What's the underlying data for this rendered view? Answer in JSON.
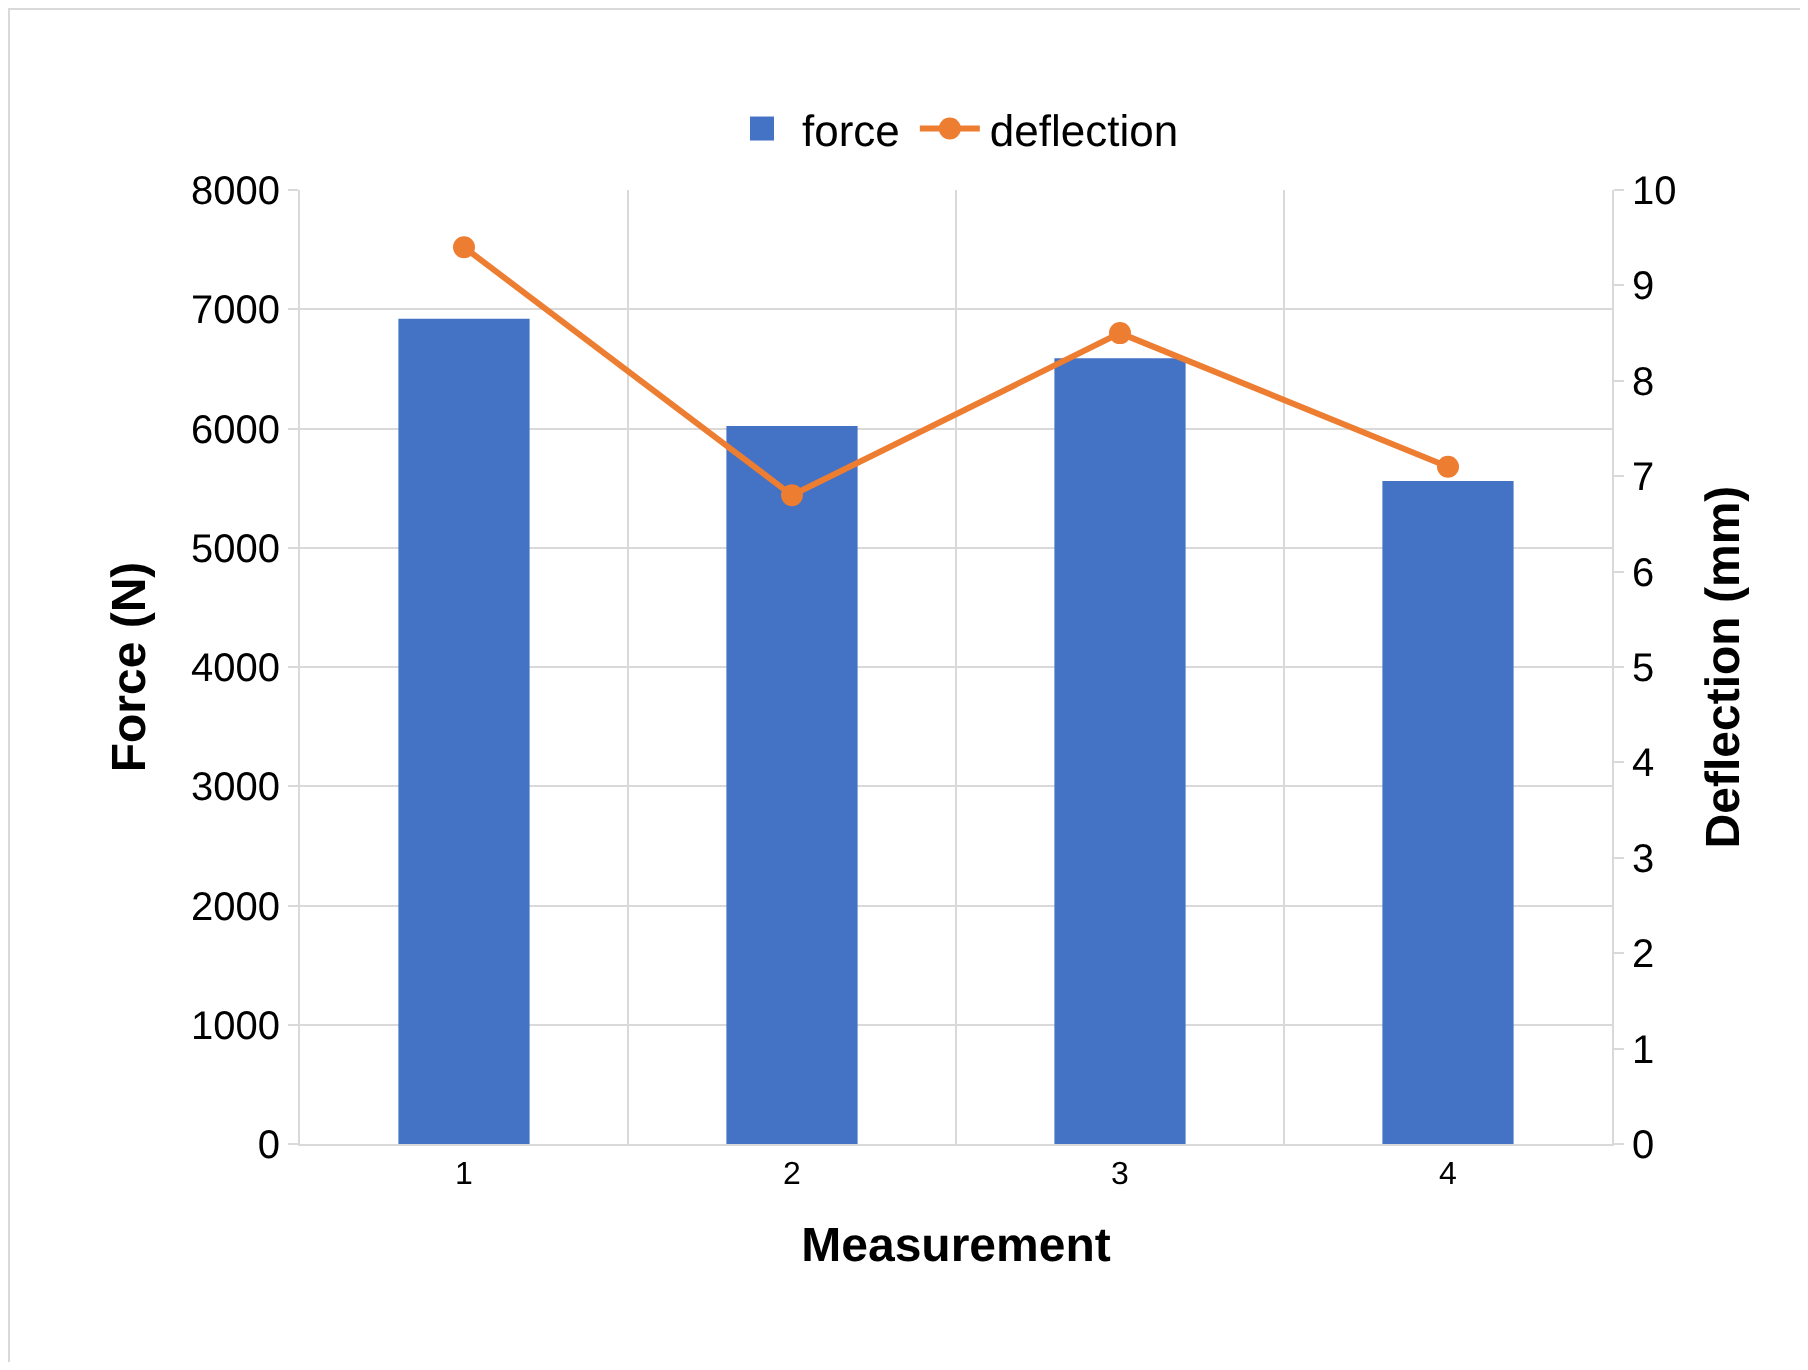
{
  "chart_data": {
    "type": "bar",
    "xlabel": "Measurement",
    "ylabel": "Force (N)",
    "y2label": "Deflection (mm)",
    "categories": [
      "1",
      "2",
      "3",
      "4"
    ],
    "series": [
      {
        "name": "force",
        "color": "#4472c4",
        "values": [
          6920,
          6020,
          6590,
          5560
        ]
      },
      {
        "name": "deflection",
        "type": "line",
        "axis": "y2",
        "color": "#ed7d31",
        "values": [
          9.4,
          6.8,
          8.5,
          7.1
        ]
      }
    ],
    "ylim": [
      0,
      8000
    ],
    "yticks": [
      0,
      1000,
      2000,
      3000,
      4000,
      5000,
      6000,
      7000,
      8000
    ],
    "y2lim": [
      0,
      10
    ],
    "y2ticks": [
      0,
      1,
      2,
      3,
      4,
      5,
      6,
      7,
      8,
      9,
      10
    ],
    "grid": true,
    "legend": "top",
    "marker": "circle",
    "line_style": "solid"
  }
}
